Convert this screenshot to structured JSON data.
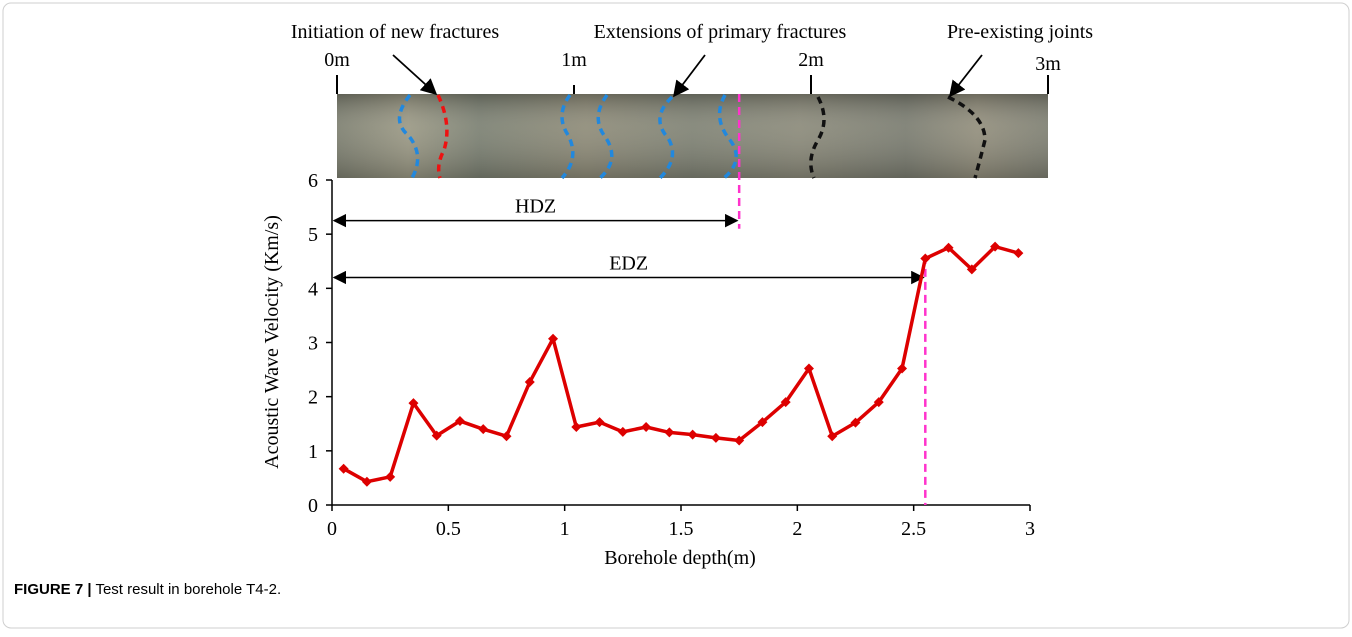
{
  "chart_data": {
    "type": "line",
    "x_label": "Borehole depth(m)",
    "y_label": "Acoustic Wave Velocity (Km/s)",
    "x": [
      0.05,
      0.15,
      0.25,
      0.35,
      0.45,
      0.55,
      0.65,
      0.75,
      0.85,
      0.95,
      1.05,
      1.15,
      1.25,
      1.35,
      1.45,
      1.55,
      1.65,
      1.75,
      1.85,
      1.95,
      2.05,
      2.15,
      2.25,
      2.35,
      2.45,
      2.55,
      2.65,
      2.75,
      2.85,
      2.95
    ],
    "series": [
      {
        "color": "#dd0000",
        "values": [
          0.67,
          0.43,
          0.52,
          1.88,
          1.28,
          1.55,
          1.4,
          1.27,
          2.27,
          3.07,
          1.44,
          1.53,
          1.35,
          1.44,
          1.34,
          1.3,
          1.24,
          1.19,
          1.53,
          1.9,
          2.52,
          1.27,
          1.52,
          1.9,
          2.52,
          4.55,
          4.75,
          4.35,
          4.77,
          4.65
        ]
      }
    ],
    "xlim": [
      0,
      3
    ],
    "xticks": [
      0,
      0.5,
      1,
      1.5,
      2,
      2.5,
      3
    ],
    "ylim": [
      0,
      6
    ],
    "yticks": [
      0,
      1,
      2,
      3,
      4,
      5,
      6
    ],
    "zones": [
      {
        "label": "HDZ",
        "from": 0,
        "to": 1.75,
        "y": 5.25,
        "color": "#ff33cc"
      },
      {
        "label": "EDZ",
        "from": 0,
        "to": 2.55,
        "y": 4.2,
        "color": "#ff33cc"
      }
    ]
  },
  "core_photo": {
    "scale": [
      {
        "value": 0,
        "label": "0m"
      },
      {
        "value": 1,
        "label": "1m"
      },
      {
        "value": 2,
        "label": "2m"
      },
      {
        "value": 3,
        "label": "3m"
      }
    ],
    "callouts": [
      "Initiation of new fractures",
      "Extensions of primary fractures",
      "Pre-existing joints"
    ]
  },
  "caption": {
    "label": "FIGURE 7 |",
    "text": "Test result in borehole T4-2."
  }
}
